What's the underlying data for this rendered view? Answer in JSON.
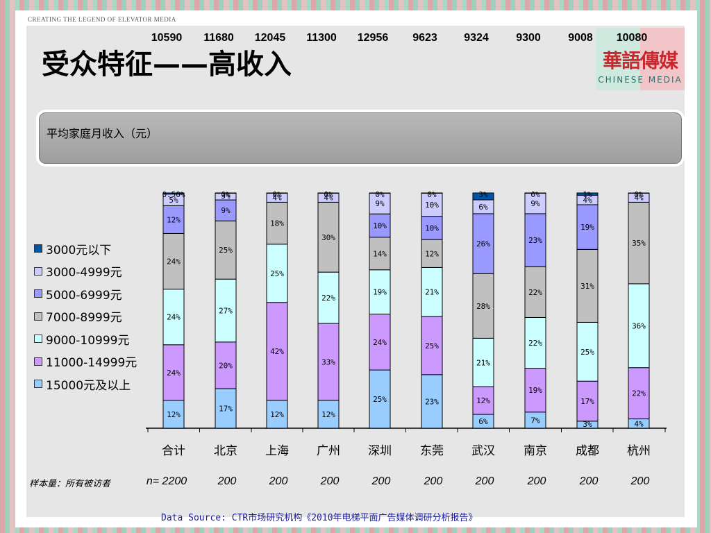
{
  "header": {
    "tagline": "CREATING THE LEGEND OF ELEVATOR MEDIA",
    "title": "受众特征——高收入"
  },
  "logo": {
    "cn": "華語傳媒",
    "en": "CHINESE MEDIA"
  },
  "income": {
    "label": "平均家庭月收入（元）",
    "values": [
      "10590",
      "11680",
      "12045",
      "11300",
      "12956",
      "9623",
      "9324",
      "9300",
      "9008",
      "10080"
    ]
  },
  "sample": {
    "label": "样本量：所有被访者",
    "values": [
      "n= 2200",
      "200",
      "200",
      "200",
      "200",
      "200",
      "200",
      "200",
      "200",
      "200"
    ]
  },
  "source": "Data Source: CTR市场研究机构《2010年电梯平面广告媒体调研分析报告》",
  "chart_data": {
    "type": "bar",
    "stacked": true,
    "categories": [
      "合计",
      "北京",
      "上海",
      "广州",
      "深圳",
      "东莞",
      "武汉",
      "南京",
      "成都",
      "杭州"
    ],
    "series": [
      {
        "name": "15000元及以上",
        "color": "#99ccff",
        "values": [
          12,
          17,
          12,
          12,
          25,
          23,
          6,
          7,
          3,
          4
        ]
      },
      {
        "name": "11000-14999元",
        "color": "#cc99ff",
        "values": [
          24,
          20,
          42,
          33,
          24,
          25,
          12,
          19,
          17,
          22
        ]
      },
      {
        "name": "9000-10999元",
        "color": "#ccffff",
        "values": [
          24,
          27,
          25,
          22,
          19,
          21,
          21,
          22,
          25,
          36
        ]
      },
      {
        "name": "7000-8999元",
        "color": "#c0c0c0",
        "values": [
          24,
          25,
          18,
          30,
          14,
          12,
          28,
          22,
          31,
          35
        ]
      },
      {
        "name": "5000-6999元",
        "color": "#9999ff",
        "values": [
          12,
          9,
          null,
          null,
          10,
          10,
          26,
          23,
          19,
          null
        ]
      },
      {
        "name": "3000-4999元",
        "color": "#ccccff",
        "values": [
          5,
          3,
          4,
          4,
          9,
          10,
          6,
          9,
          4,
          4
        ]
      },
      {
        "name": "3000元以下",
        "color": "#0055a5",
        "values": [
          0.5,
          0,
          0,
          0,
          0,
          0,
          3,
          0,
          1,
          0
        ]
      }
    ],
    "labels": [
      [
        "12%",
        "24%",
        "24%",
        "24%",
        "12%",
        "5%",
        "0.50%"
      ],
      [
        "17%",
        "20%",
        "27%",
        "25%",
        "9%",
        "3%",
        "0%"
      ],
      [
        "12%",
        "42%",
        "25%",
        "18%",
        "",
        "4%",
        "0%"
      ],
      [
        "12%",
        "33%",
        "22%",
        "30%",
        "",
        "4%",
        "0%"
      ],
      [
        "25%",
        "24%",
        "19%",
        "14%",
        "10%",
        "9%",
        "0%"
      ],
      [
        "23%",
        "25%",
        "21%",
        "12%",
        "10%",
        "10%",
        "0%"
      ],
      [
        "6%",
        "12%",
        "21%",
        "28%",
        "26%",
        "6%",
        "3%"
      ],
      [
        "7%",
        "19%",
        "22%",
        "22%",
        "23%",
        "9%",
        "0%"
      ],
      [
        "3%",
        "17%",
        "25%",
        "31%",
        "19%",
        "4%",
        "1%"
      ],
      [
        "4%",
        "22%",
        "36%",
        "35%",
        "",
        "4%",
        "0%"
      ]
    ],
    "legend_order": [
      "3000元以下",
      "3000-4999元",
      "5000-6999元",
      "7000-8999元",
      "9000-10999元",
      "11000-14999元",
      "15000元及以上"
    ],
    "ylim": [
      0,
      100
    ],
    "legend_position": "left"
  }
}
